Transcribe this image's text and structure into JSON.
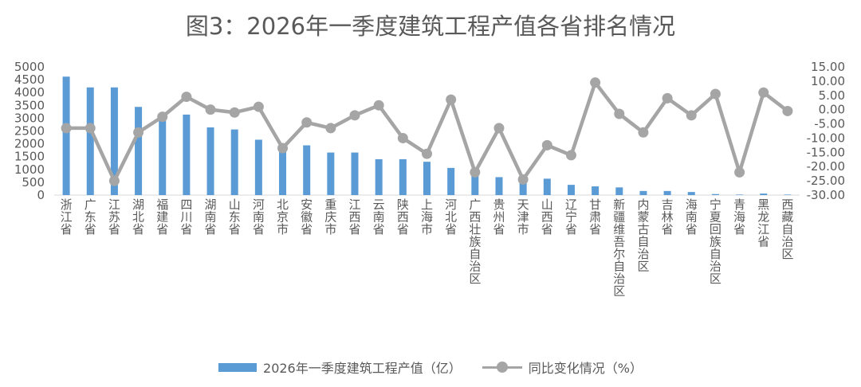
{
  "chart_data": {
    "type": "bar+line",
    "title": "图3：2026年一季度建筑工程产值各省排名情况",
    "categories": [
      "浙江省",
      "广东省",
      "江苏省",
      "湖北省",
      "福建省",
      "四川省",
      "湖南省",
      "山东省",
      "河南省",
      "北京市",
      "安徽省",
      "重庆市",
      "江西省",
      "云南省",
      "陕西省",
      "上海市",
      "河北省",
      "广西壮族自治区",
      "贵州省",
      "天津市",
      "山西省",
      "辽宁省",
      "甘肃省",
      "新疆维吾尔自治区",
      "内蒙古自治区",
      "吉林省",
      "海南省",
      "宁夏回族自治区",
      "青海省",
      "黑龙江省",
      "西藏自治区"
    ],
    "series": [
      {
        "name": "2026年一季度建筑工程产值（亿）",
        "type": "bar",
        "axis": "left",
        "color": "#5B9BD5",
        "values": [
          4620,
          4200,
          4200,
          3440,
          3100,
          3140,
          2640,
          2560,
          2160,
          1900,
          1940,
          1660,
          1660,
          1400,
          1400,
          1300,
          1060,
          1000,
          700,
          600,
          640,
          400,
          340,
          300,
          160,
          160,
          120,
          40,
          20,
          60,
          20
        ]
      },
      {
        "name": "同比变化情况（%）",
        "type": "line",
        "axis": "right",
        "color": "#A5A5A5",
        "values": [
          -6.5,
          -6.5,
          -25.0,
          -8.0,
          -2.5,
          4.5,
          0.0,
          -1.0,
          1.0,
          -13.5,
          -4.5,
          -6.5,
          -2.0,
          1.5,
          -10.0,
          -15.5,
          3.5,
          -22.0,
          -6.5,
          -24.5,
          -12.5,
          -16.0,
          9.5,
          -1.5,
          -8.0,
          4.0,
          -2.0,
          5.5,
          -22.0,
          6.0,
          -0.5
        ]
      }
    ],
    "y_left": {
      "min": 0,
      "max": 5000,
      "step": 500,
      "ticks": [
        "0",
        "500",
        "1000",
        "1500",
        "2000",
        "2500",
        "3000",
        "3500",
        "4000",
        "4500",
        "5000"
      ]
    },
    "y_right": {
      "min": -30,
      "max": 15,
      "step": 5,
      "ticks": [
        "-30.00",
        "-25.00",
        "-20.00",
        "-15.00",
        "-10.00",
        "-5.00",
        "0.00",
        "5.00",
        "10.00",
        "15.00"
      ]
    },
    "grid": false,
    "legend_position": "bottom"
  }
}
